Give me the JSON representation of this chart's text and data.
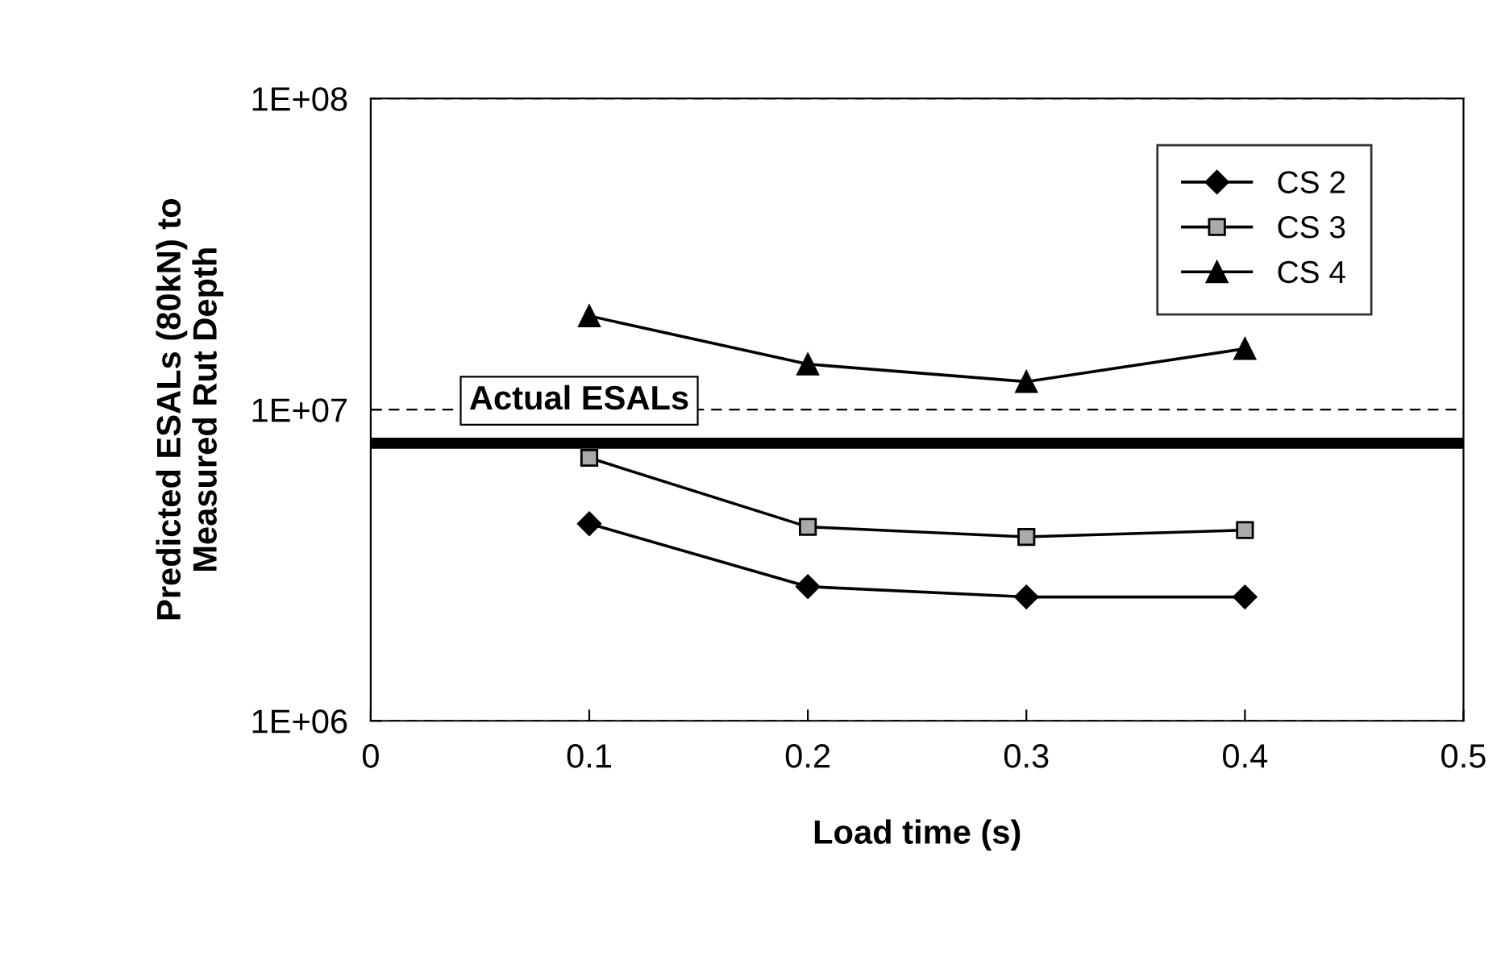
{
  "chart_data": {
    "type": "line",
    "xlabel": "Load time (s)",
    "ylabel": "Predicted ESALs (80kN) to\nMeasured Rut Depth",
    "x": [
      0.1,
      0.2,
      0.3,
      0.4
    ],
    "series": [
      {
        "name": "CS 2",
        "color": "#000000",
        "marker": "diamond",
        "values": [
          4300000,
          2700000,
          2500000,
          2500000
        ]
      },
      {
        "name": "CS 3",
        "color": "#000000",
        "marker": "square",
        "values": [
          7000000,
          4200000,
          3900000,
          4100000
        ]
      },
      {
        "name": "CS 4",
        "color": "#000000",
        "marker": "triangle",
        "values": [
          20000000,
          14000000,
          12300000,
          15700000
        ]
      }
    ],
    "log": "y",
    "xlim": [
      0,
      0.5
    ],
    "xticks": [
      0,
      0.1,
      0.2,
      0.3,
      0.4,
      0.5
    ],
    "ylim": [
      1000000,
      100000000
    ],
    "yticks": [
      {
        "value": 1000000,
        "label": "1E+06"
      },
      {
        "value": 10000000,
        "label": "1E+07"
      },
      {
        "value": 100000000,
        "label": "1E+08"
      }
    ],
    "grid": "y",
    "legend": "top right",
    "line_style": "solid",
    "ref_lines": [
      {
        "axis": "y",
        "value": 7800000,
        "label": "Actual ESALs",
        "color": "#000000",
        "line_style": "solid"
      }
    ]
  }
}
